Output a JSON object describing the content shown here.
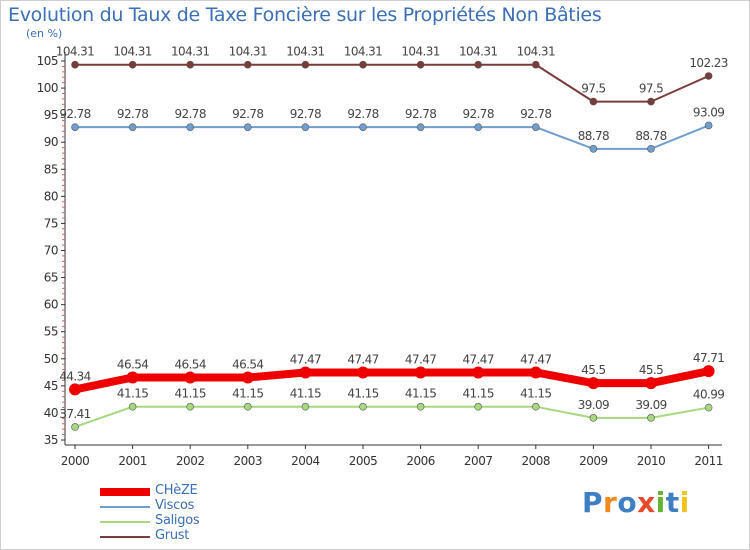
{
  "chart_data": {
    "type": "line",
    "title": "Evolution du Taux de Taxe Foncière sur les Propriétés Non Bâties",
    "ylabel": "(en %)",
    "xlabel": "",
    "categories": [
      "2000",
      "2001",
      "2002",
      "2003",
      "2004",
      "2005",
      "2006",
      "2007",
      "2008",
      "2009",
      "2010",
      "2011"
    ],
    "ylim": [
      35,
      105
    ],
    "yticks": [
      35,
      40,
      45,
      50,
      55,
      60,
      65,
      70,
      75,
      80,
      85,
      90,
      95,
      100,
      105
    ],
    "grid": false,
    "series": [
      {
        "name": "CHèZE",
        "color": "#ee0000",
        "emphasis": true,
        "values": [
          44.34,
          46.54,
          46.54,
          46.54,
          47.47,
          47.47,
          47.47,
          47.47,
          47.47,
          45.5,
          45.5,
          47.71
        ],
        "labels": [
          "44.34",
          "46.54",
          "46.54",
          "46.54",
          "47.47",
          "47.47",
          "47.47",
          "47.47",
          "47.47",
          "45.5",
          "45.5",
          "47.71"
        ]
      },
      {
        "name": "Viscos",
        "color": "#6f9fcf",
        "emphasis": false,
        "values": [
          92.78,
          92.78,
          92.78,
          92.78,
          92.78,
          92.78,
          92.78,
          92.78,
          92.78,
          88.78,
          88.78,
          93.09
        ],
        "labels": [
          "92.78",
          "92.78",
          "92.78",
          "92.78",
          "92.78",
          "92.78",
          "92.78",
          "92.78",
          "92.78",
          "88.78",
          "88.78",
          "93.09"
        ]
      },
      {
        "name": "Saligos",
        "color": "#a6d87e",
        "emphasis": false,
        "values": [
          37.41,
          41.15,
          41.15,
          41.15,
          41.15,
          41.15,
          41.15,
          41.15,
          41.15,
          39.09,
          39.09,
          40.99
        ],
        "labels": [
          "37.41",
          "41.15",
          "41.15",
          "41.15",
          "41.15",
          "41.15",
          "41.15",
          "41.15",
          "41.15",
          "39.09",
          "39.09",
          "40.99"
        ]
      },
      {
        "name": "Grust",
        "color": "#7a3b3b",
        "emphasis": false,
        "values": [
          104.31,
          104.31,
          104.31,
          104.31,
          104.31,
          104.31,
          104.31,
          104.31,
          104.31,
          97.5,
          97.5,
          102.23
        ],
        "labels": [
          "104.31",
          "104.31",
          "104.31",
          "104.31",
          "104.31",
          "104.31",
          "104.31",
          "104.31",
          "104.31",
          "97.5",
          "97.5",
          "102.23"
        ]
      }
    ],
    "legend_position": "bottom-left"
  },
  "logo": {
    "letters": [
      "P",
      "r",
      "o",
      "x",
      "i",
      "t",
      "i"
    ],
    "colors": [
      "#3e7fc4",
      "#f08a1c",
      "#3e7fc4",
      "#e8492a",
      "#66b332",
      "#3e7fc4",
      "#f0c21c"
    ]
  }
}
